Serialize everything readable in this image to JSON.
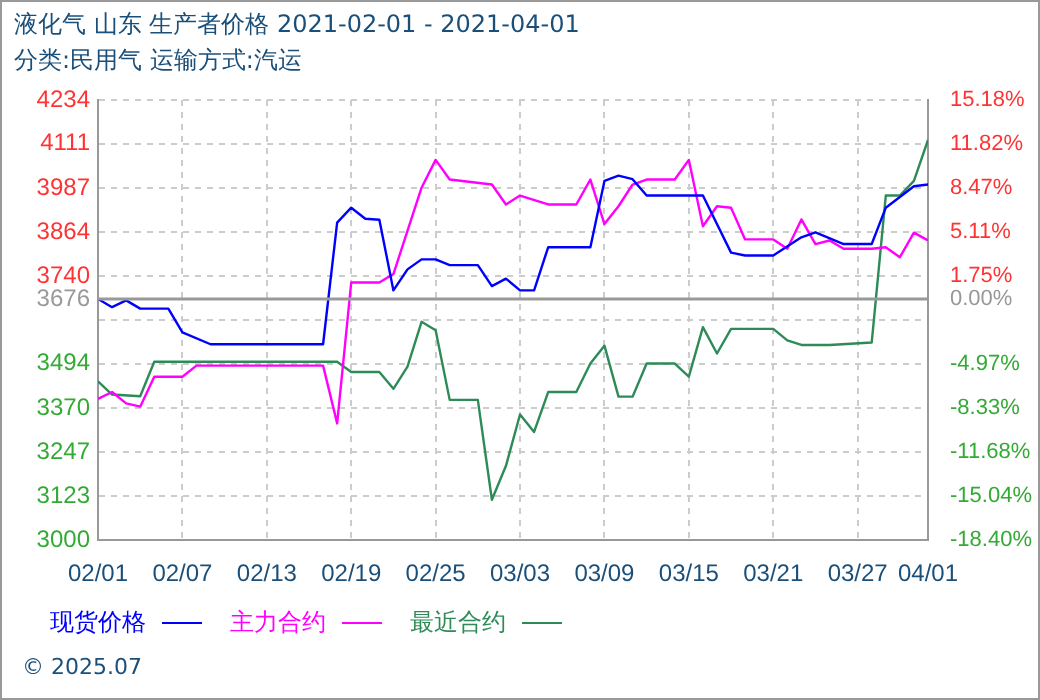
{
  "chart_data": {
    "type": "line",
    "title": "液化气 山东 生产者价格 2021-02-01 - 2021-04-01",
    "subtitle": "分类:民用气 运输方式:汽运",
    "annotations": [
      "© 2025.07"
    ],
    "xlim": [
      "2021-02-01",
      "2021-04-01"
    ],
    "xticks": [
      {
        "value": "2021-02-01",
        "label": "02/01"
      },
      {
        "value": "2021-02-07",
        "label": "02/07"
      },
      {
        "value": "2021-02-13",
        "label": "02/13"
      },
      {
        "value": "2021-02-19",
        "label": "02/19"
      },
      {
        "value": "2021-02-25",
        "label": "02/25"
      },
      {
        "value": "2021-03-03",
        "label": "03/03"
      },
      {
        "value": "2021-03-09",
        "label": "03/09"
      },
      {
        "value": "2021-03-15",
        "label": "03/15"
      },
      {
        "value": "2021-03-21",
        "label": "03/21"
      },
      {
        "value": "2021-03-27",
        "label": "03/27"
      },
      {
        "value": "2021-04-01",
        "label": "04/01"
      }
    ],
    "ylim": [
      3000,
      4234
    ],
    "yticks": [
      3000,
      3123,
      3247,
      3370,
      3494,
      {
        "value": 3617,
        "label": null
      },
      3676,
      3740,
      3864,
      3987,
      4111,
      4234
    ],
    "y2lim": [
      -18.4,
      15.18
    ],
    "y2ticks": [
      {
        "value": -18.4,
        "label": "-18.40%"
      },
      {
        "value": -15.04,
        "label": "-15.04%"
      },
      {
        "value": -11.68,
        "label": "-11.68%"
      },
      {
        "value": -8.33,
        "label": "-8.33%"
      },
      {
        "value": -4.97,
        "label": "-4.97%"
      },
      {
        "value": 0,
        "label": "0.00%"
      },
      {
        "value": 1.75,
        "label": "1.75%"
      },
      {
        "value": 5.11,
        "label": "5.11%"
      },
      {
        "value": 8.47,
        "label": "8.47%"
      },
      {
        "value": 11.82,
        "label": "11.82%"
      },
      {
        "value": 15.18,
        "label": "15.18%"
      }
    ],
    "ref_lines": [
      {
        "axis": "y",
        "value": 3676,
        "color": "#999999"
      }
    ],
    "grid": true,
    "legend": "bottom",
    "marker": "none",
    "line_style": "solid",
    "series": [
      {
        "name": "现货价格",
        "color": "#0000ff",
        "x": [
          "2021-02-01",
          "2021-02-02",
          "2021-02-03",
          "2021-02-04",
          "2021-02-06",
          "2021-02-07",
          "2021-02-09",
          "2021-02-17",
          "2021-02-18",
          "2021-02-19",
          "2021-02-20",
          "2021-02-21",
          "2021-02-22",
          "2021-02-23",
          "2021-02-24",
          "2021-02-25",
          "2021-02-26",
          "2021-02-28",
          "2021-03-01",
          "2021-03-02",
          "2021-03-03",
          "2021-03-04",
          "2021-03-05",
          "2021-03-08",
          "2021-03-09",
          "2021-03-10",
          "2021-03-11",
          "2021-03-12",
          "2021-03-16",
          "2021-03-18",
          "2021-03-19",
          "2021-03-21",
          "2021-03-23",
          "2021-03-24",
          "2021-03-26",
          "2021-03-28",
          "2021-03-29",
          "2021-03-31",
          "2021-04-01"
        ],
        "values": [
          3676,
          3653,
          3672,
          3649,
          3649,
          3582,
          3549,
          3549,
          3890,
          3932,
          3901,
          3898,
          3700,
          3759,
          3787,
          3787,
          3771,
          3771,
          3712,
          3733,
          3700,
          3700,
          3821,
          3821,
          4007,
          4022,
          4012,
          3966,
          3966,
          3806,
          3798,
          3798,
          3849,
          3863,
          3830,
          3830,
          3932,
          3992,
          3997
        ]
      },
      {
        "name": "主力合约",
        "color": "#ff00ff",
        "x": [
          "2021-02-01",
          "2021-02-02",
          "2021-02-03",
          "2021-02-04",
          "2021-02-05",
          "2021-02-07",
          "2021-02-08",
          "2021-02-17",
          "2021-02-18",
          "2021-02-19",
          "2021-02-21",
          "2021-02-22",
          "2021-02-24",
          "2021-02-25",
          "2021-02-26",
          "2021-03-01",
          "2021-03-02",
          "2021-03-03",
          "2021-03-05",
          "2021-03-07",
          "2021-03-08",
          "2021-03-09",
          "2021-03-10",
          "2021-03-11",
          "2021-03-12",
          "2021-03-14",
          "2021-03-15",
          "2021-03-16",
          "2021-03-17",
          "2021-03-18",
          "2021-03-19",
          "2021-03-21",
          "2021-03-22",
          "2021-03-23",
          "2021-03-24",
          "2021-03-25",
          "2021-03-26",
          "2021-03-28",
          "2021-03-29",
          "2021-03-30",
          "2021-03-31",
          "2021-04-01"
        ],
        "values": [
          3396,
          3415,
          3383,
          3374,
          3458,
          3458,
          3489,
          3489,
          3327,
          3722,
          3722,
          3746,
          3988,
          4066,
          4011,
          3997,
          3941,
          3966,
          3941,
          3941,
          4011,
          3886,
          3936,
          3997,
          4011,
          4011,
          4066,
          3880,
          3936,
          3932,
          3843,
          3843,
          3817,
          3899,
          3830,
          3840,
          3817,
          3817,
          3821,
          3793,
          3862,
          3840
        ]
      },
      {
        "name": "最近合约",
        "color": "#2e8b57",
        "x": [
          "2021-02-01",
          "2021-02-02",
          "2021-02-04",
          "2021-02-05",
          "2021-02-18",
          "2021-02-19",
          "2021-02-21",
          "2021-02-22",
          "2021-02-23",
          "2021-02-24",
          "2021-02-25",
          "2021-02-26",
          "2021-02-28",
          "2021-03-01",
          "2021-03-02",
          "2021-03-03",
          "2021-03-04",
          "2021-03-05",
          "2021-03-07",
          "2021-03-08",
          "2021-03-09",
          "2021-03-10",
          "2021-03-11",
          "2021-03-12",
          "2021-03-14",
          "2021-03-15",
          "2021-03-16",
          "2021-03-17",
          "2021-03-18",
          "2021-03-21",
          "2021-03-22",
          "2021-03-23",
          "2021-03-25",
          "2021-03-28",
          "2021-03-29",
          "2021-03-30",
          "2021-03-31",
          "2021-04-01"
        ],
        "values": [
          3445,
          3408,
          3403,
          3500,
          3500,
          3471,
          3471,
          3424,
          3486,
          3612,
          3588,
          3393,
          3393,
          3113,
          3208,
          3352,
          3303,
          3415,
          3415,
          3495,
          3545,
          3402,
          3402,
          3495,
          3495,
          3458,
          3597,
          3523,
          3592,
          3592,
          3560,
          3547,
          3547,
          3554,
          3966,
          3966,
          4007,
          4122
        ]
      }
    ]
  }
}
